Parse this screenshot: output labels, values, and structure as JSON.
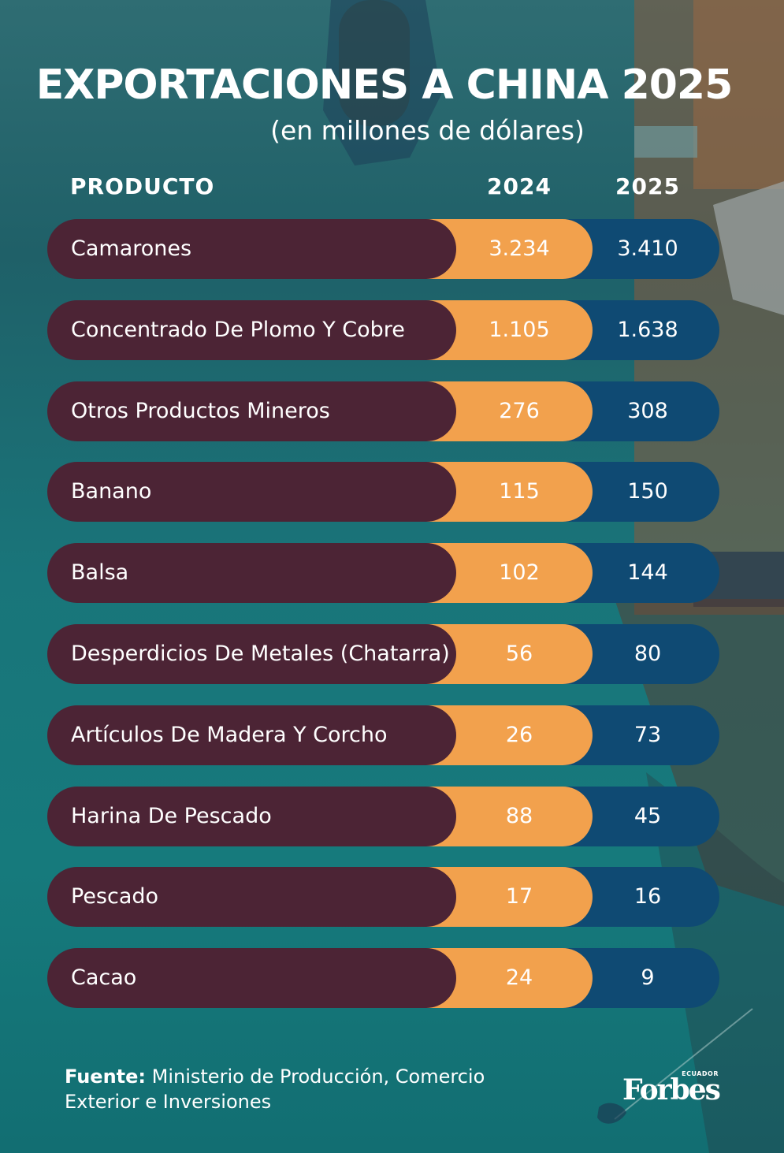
{
  "chart_data": {
    "type": "table",
    "title": "EXPORTACIONES A CHINA 2025",
    "subtitle": "(en millones de dólares)",
    "columns": [
      "PRODUCTO",
      "2024",
      "2025"
    ],
    "categories": [
      "Camarones",
      "Concentrado De Plomo Y Cobre",
      "Otros Productos Mineros",
      "Banano",
      "Balsa",
      "Desperdicios De Metales (Chatarra)",
      "Artículos De Madera Y Corcho",
      "Harina De Pescado",
      "Pescado",
      "Cacao"
    ],
    "series": [
      {
        "name": "2024",
        "values": [
          3234,
          1105,
          276,
          115,
          102,
          56,
          26,
          88,
          17,
          24
        ],
        "labels": [
          "3.234",
          "1.105",
          "276",
          "115",
          "102",
          "56",
          "26",
          "88",
          "17",
          "24"
        ]
      },
      {
        "name": "2025",
        "values": [
          3410,
          1638,
          308,
          150,
          144,
          80,
          73,
          45,
          16,
          9
        ],
        "labels": [
          "3.410",
          "1.638",
          "308",
          "150",
          "144",
          "80",
          "73",
          "45",
          "16",
          "9"
        ]
      }
    ]
  },
  "footer": {
    "source_label": "Fuente:",
    "source_text": "Ministerio de Producción, Comercio Exterior e Inversiones"
  },
  "brand": {
    "name": "Forbes",
    "edition": "ECUADOR"
  },
  "colors": {
    "product_pill": "#4c2435",
    "year_2024_pill": "#f2a14d",
    "year_2025_pill": "#0f4a73",
    "background": "#1f6068"
  }
}
